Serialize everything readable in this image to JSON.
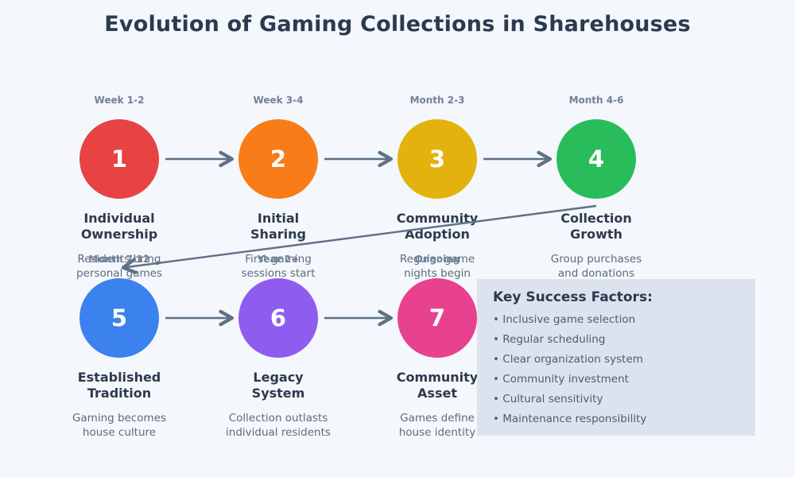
{
  "title": "Evolution of Gaming Collections in Sharehouses",
  "stages": [
    {
      "number": "1",
      "time": "Week 1-2",
      "title_lines": [
        "Individual",
        "Ownership"
      ],
      "desc_lines": [
        "Residents bring",
        "personal games"
      ],
      "color": "#e84343"
    },
    {
      "number": "2",
      "time": "Week 3-4",
      "title_lines": [
        "Initial",
        "Sharing"
      ],
      "desc_lines": [
        "First gaming",
        "sessions start"
      ],
      "color": "#f87c17"
    },
    {
      "number": "3",
      "time": "Month 2-3",
      "title_lines": [
        "Community",
        "Adoption"
      ],
      "desc_lines": [
        "Regular game",
        "nights begin"
      ],
      "color": "#e3b20d"
    },
    {
      "number": "4",
      "time": "Month 4-6",
      "title_lines": [
        "Collection",
        "Growth"
      ],
      "desc_lines": [
        "Group purchases",
        "and donations"
      ],
      "color": "#28bd5a"
    },
    {
      "number": "5",
      "time": "Month 7-12",
      "title_lines": [
        "Established",
        "Tradition"
      ],
      "desc_lines": [
        "Gaming becomes",
        "house culture"
      ],
      "color": "#3b82ee"
    },
    {
      "number": "6",
      "time": "Year 2+",
      "title_lines": [
        "Legacy",
        "System"
      ],
      "desc_lines": [
        "Collection outlasts",
        "individual residents"
      ],
      "color": "#8f5cf0"
    },
    {
      "number": "7",
      "time": "Ongoing",
      "title_lines": [
        "Community",
        "Asset"
      ],
      "desc_lines": [
        "Games define",
        "house identity"
      ],
      "color": "#e8418f"
    }
  ],
  "key_factors": {
    "title": "Key Success Factors:",
    "items": [
      "Inclusive game selection",
      "Regular scheduling",
      "Clear organization system",
      "Community investment",
      "Cultural sensitivity",
      "Maintenance responsibility"
    ]
  },
  "colors": {
    "background": "#f4f7fb",
    "title_text": "#2c3a4f",
    "time_label_text": "#72819a",
    "description_text": "#5d6b7c",
    "arrow": "#5f7186",
    "key_box_background": "#dde3ee",
    "key_box_text": "#4e5c6e"
  }
}
